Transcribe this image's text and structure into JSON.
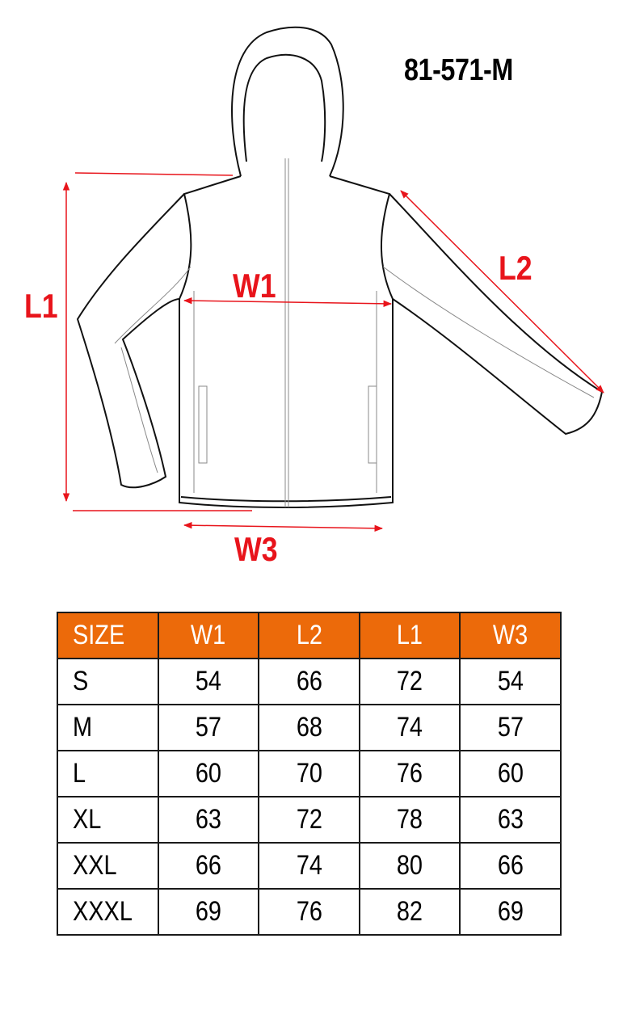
{
  "product_code": "81-571-M",
  "measurement_labels": {
    "l1": "L1",
    "l2": "L2",
    "w1": "W1",
    "w3": "W3"
  },
  "colors": {
    "header_bg": "#ec6a0a",
    "arrow": "#e8141b"
  },
  "table": {
    "headers": [
      "SIZE",
      "W1",
      "L2",
      "L1",
      "W3"
    ],
    "rows": [
      [
        "S",
        "54",
        "66",
        "72",
        "54"
      ],
      [
        "M",
        "57",
        "68",
        "74",
        "57"
      ],
      [
        "L",
        "60",
        "70",
        "76",
        "60"
      ],
      [
        "XL",
        "63",
        "72",
        "78",
        "63"
      ],
      [
        "XXL",
        "66",
        "74",
        "80",
        "66"
      ],
      [
        "XXXL",
        "69",
        "76",
        "82",
        "69"
      ]
    ]
  }
}
